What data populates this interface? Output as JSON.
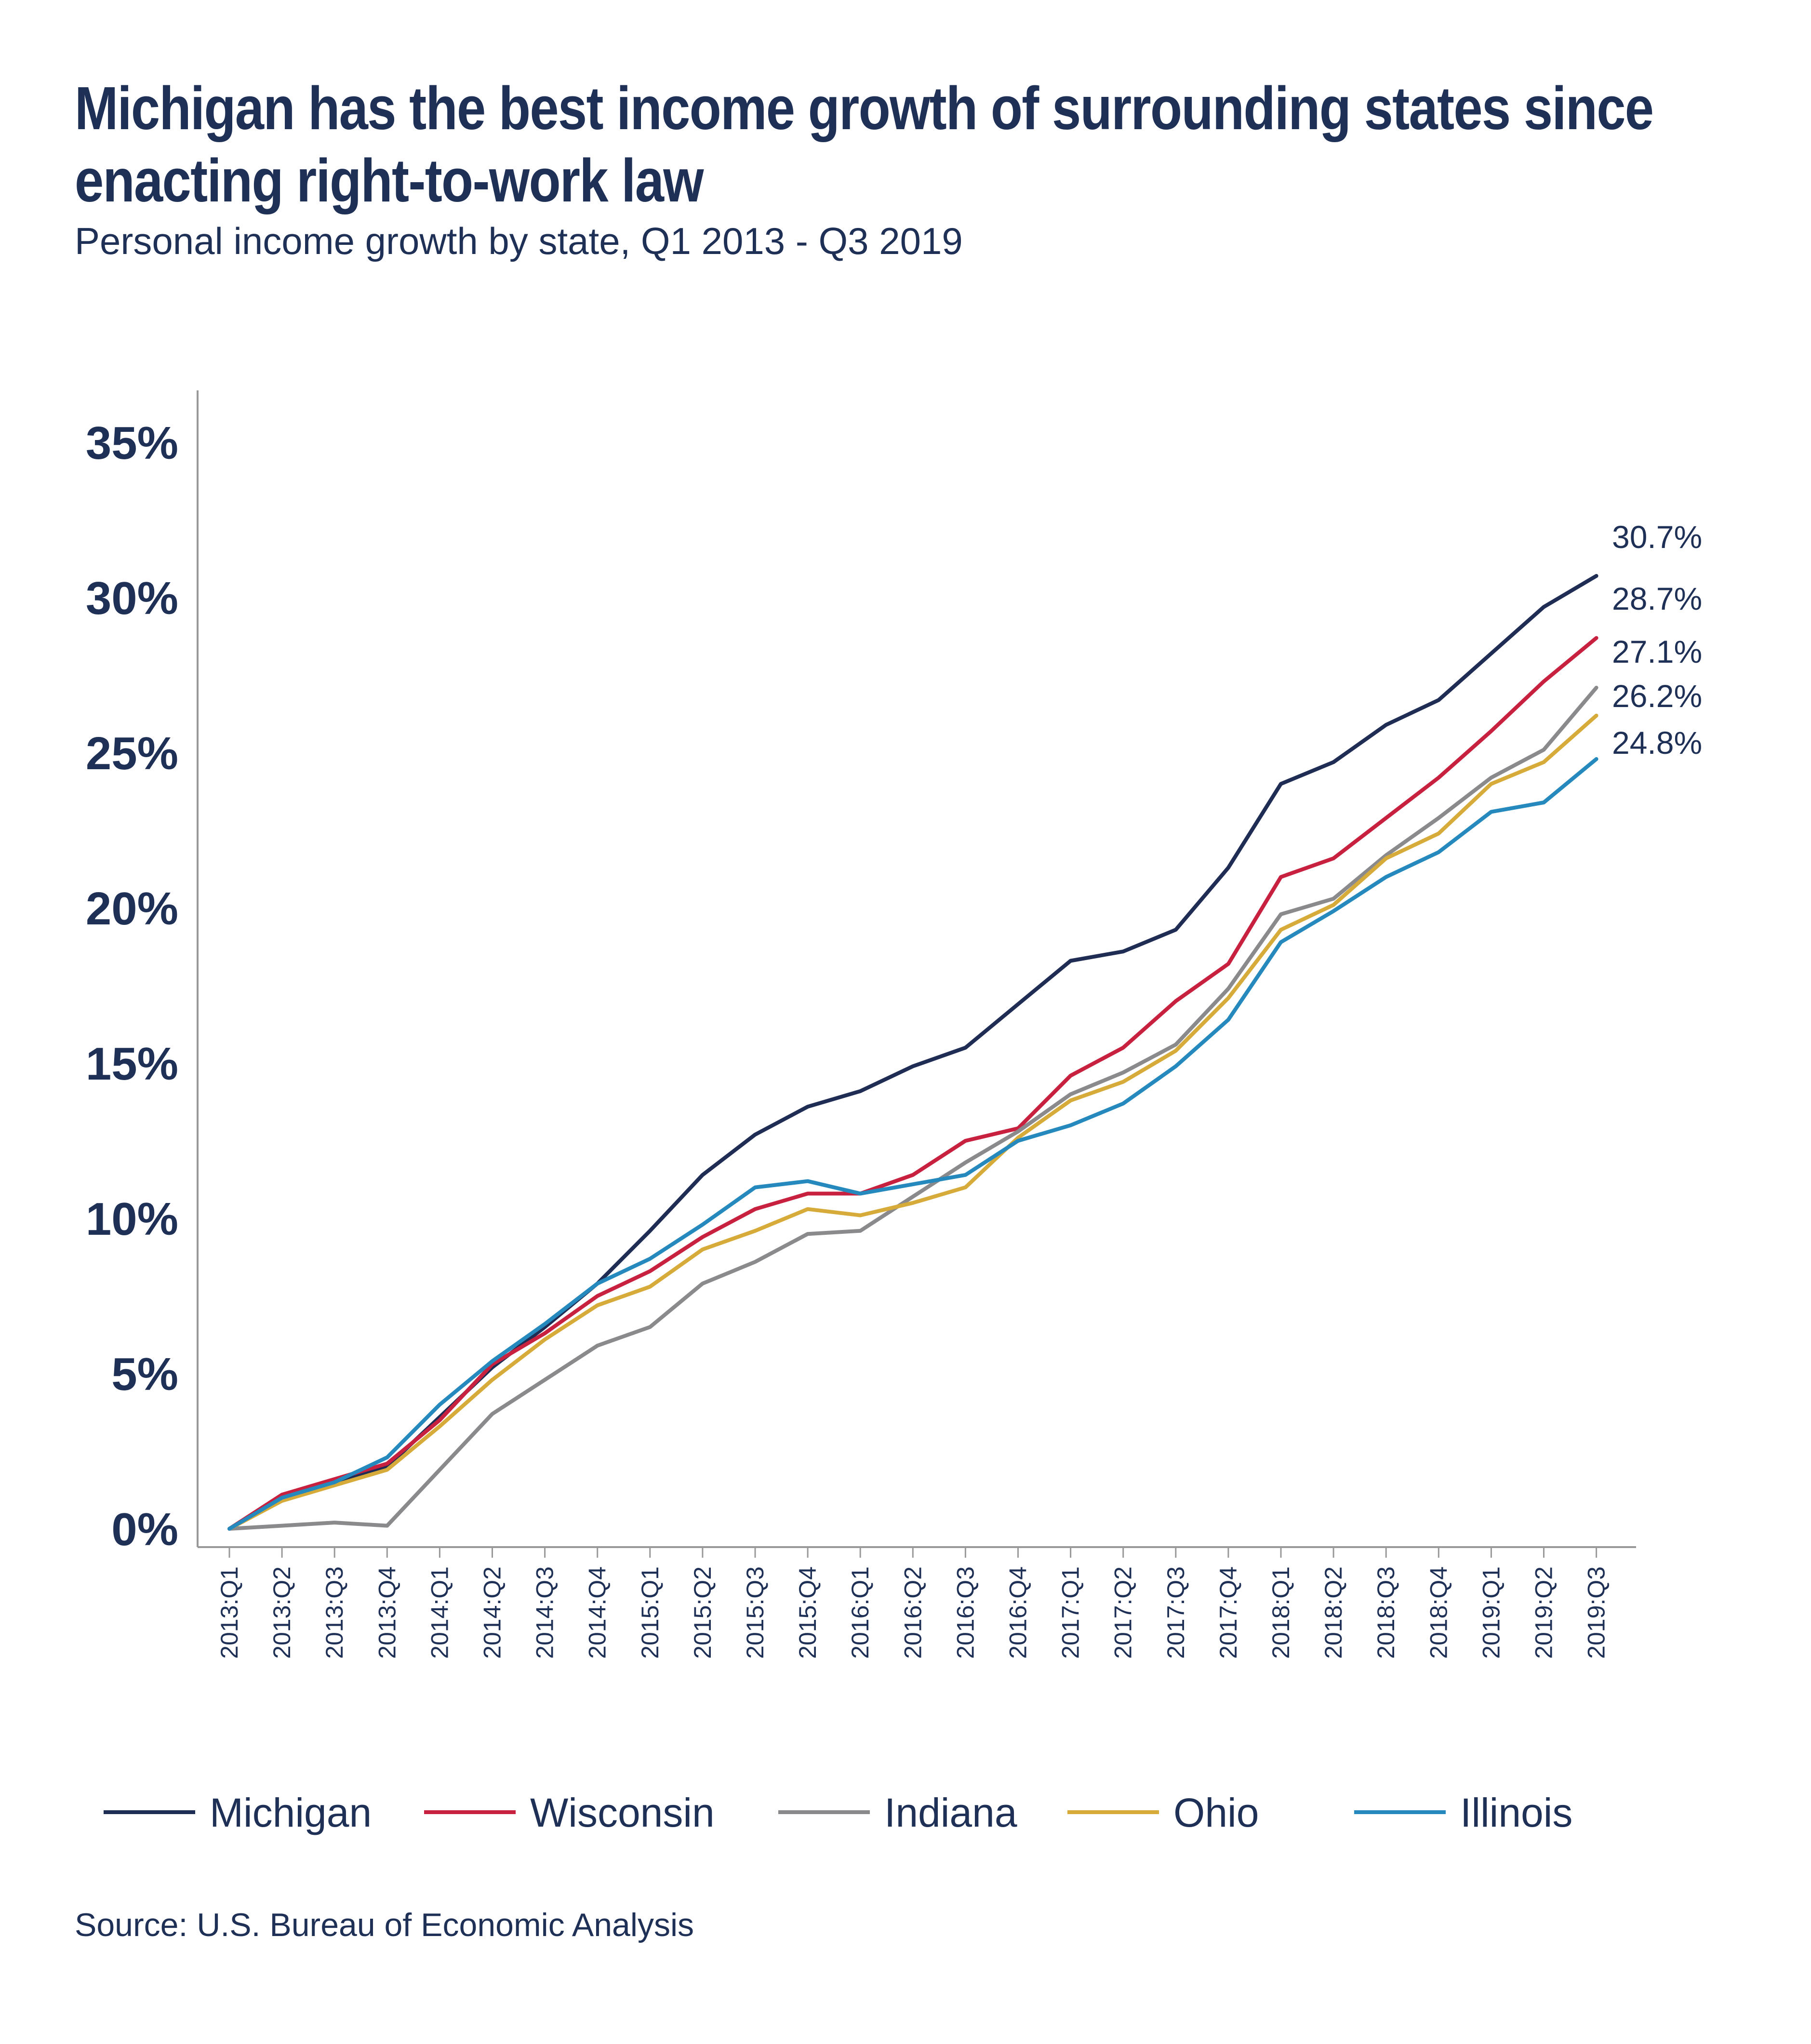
{
  "title": "Michigan has the best income growth of surrounding states since enacting right-to-work law",
  "subtitle": "Personal income growth by state, Q1 2013 - Q3 2019",
  "source": "Source: U.S. Bureau of Economic Analysis",
  "chart_data": {
    "type": "line",
    "ylim": [
      0,
      35
    ],
    "y_ticks": [
      0,
      5,
      10,
      15,
      20,
      25,
      30,
      35
    ],
    "y_tick_labels": [
      "0%",
      "5%",
      "10%",
      "15%",
      "20%",
      "25%",
      "30%",
      "35%"
    ],
    "grid": false,
    "legend_position": "bottom",
    "x": [
      "2013:Q1",
      "2013:Q2",
      "2013:Q3",
      "2013:Q4",
      "2014:Q1",
      "2014:Q2",
      "2014:Q3",
      "2014:Q4",
      "2015:Q1",
      "2015:Q2",
      "2015:Q3",
      "2015:Q4",
      "2016:Q1",
      "2016:Q2",
      "2016:Q3",
      "2016:Q4",
      "2017:Q1",
      "2017:Q2",
      "2017:Q3",
      "2017:Q4",
      "2018:Q1",
      "2018:Q2",
      "2018:Q3",
      "2018:Q4",
      "2019:Q1",
      "2019:Q2",
      "2019:Q3"
    ],
    "series": [
      {
        "name": "Michigan",
        "color": "#1f2d55",
        "end_label": "30.7%",
        "values": [
          0.0,
          1.0,
          1.5,
          2.0,
          3.6,
          5.2,
          6.5,
          7.9,
          9.6,
          11.4,
          12.7,
          13.6,
          14.1,
          14.9,
          15.5,
          16.9,
          18.3,
          18.6,
          19.3,
          21.3,
          24.0,
          24.7,
          25.9,
          26.7,
          28.2,
          29.7,
          30.7
        ]
      },
      {
        "name": "Wisconsin",
        "color": "#c8203f",
        "end_label": "28.7%",
        "values": [
          0.0,
          1.1,
          1.6,
          2.1,
          3.5,
          5.3,
          6.3,
          7.5,
          8.3,
          9.4,
          10.3,
          10.8,
          10.8,
          11.4,
          12.5,
          12.9,
          14.6,
          15.5,
          17.0,
          18.2,
          21.0,
          21.6,
          22.9,
          24.2,
          25.7,
          27.3,
          28.7
        ]
      },
      {
        "name": "Indiana",
        "color": "#8a8a8c",
        "end_label": "27.1%",
        "values": [
          0.0,
          0.1,
          0.2,
          0.1,
          1.9,
          3.7,
          4.8,
          5.9,
          6.5,
          7.9,
          8.6,
          9.5,
          9.6,
          10.7,
          11.8,
          12.8,
          14.0,
          14.7,
          15.6,
          17.4,
          19.8,
          20.3,
          21.7,
          22.9,
          24.2,
          25.1,
          27.1
        ]
      },
      {
        "name": "Ohio",
        "color": "#d6ab3a",
        "end_label": "26.2%",
        "values": [
          0.0,
          0.9,
          1.4,
          1.9,
          3.3,
          4.8,
          6.1,
          7.2,
          7.8,
          9.0,
          9.6,
          10.3,
          10.1,
          10.5,
          11.0,
          12.6,
          13.8,
          14.4,
          15.4,
          17.1,
          19.3,
          20.1,
          21.6,
          22.4,
          24.0,
          24.7,
          26.2
        ]
      },
      {
        "name": "Illinois",
        "color": "#2589bd",
        "end_label": "24.8%",
        "values": [
          0.0,
          1.0,
          1.5,
          2.3,
          4.0,
          5.4,
          6.6,
          7.9,
          8.7,
          9.8,
          11.0,
          11.2,
          10.8,
          11.1,
          11.4,
          12.5,
          13.0,
          13.7,
          14.9,
          16.4,
          18.9,
          19.9,
          21.0,
          21.8,
          23.1,
          23.4,
          24.8
        ]
      }
    ]
  }
}
